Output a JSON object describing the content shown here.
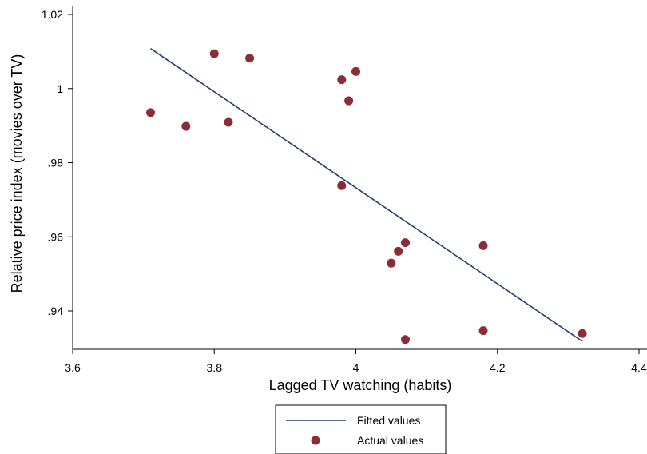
{
  "chart_data": {
    "type": "scatter",
    "xlabel": "Lagged TV watching (habits)",
    "ylabel": "Relative price index (movies over TV)",
    "xlim": [
      3.6,
      4.4
    ],
    "ylim": [
      0.929,
      1.023
    ],
    "x_ticks": [
      {
        "value": 3.6,
        "label": "3.6"
      },
      {
        "value": 3.8,
        "label": "3.8"
      },
      {
        "value": 4.0,
        "label": "4"
      },
      {
        "value": 4.2,
        "label": "4.2"
      },
      {
        "value": 4.4,
        "label": "4.4"
      }
    ],
    "y_ticks": [
      {
        "value": 0.94,
        "label": ".94"
      },
      {
        "value": 0.96,
        "label": ".96"
      },
      {
        "value": 0.98,
        "label": ".98"
      },
      {
        "value": 1.0,
        "label": "1"
      },
      {
        "value": 1.02,
        "label": "1.02"
      }
    ],
    "grid": false,
    "legend_position": "bottom",
    "series": [
      {
        "name": "Fitted values",
        "kind": "line",
        "color": "#1f3f6b",
        "points": [
          [
            3.71,
            1.0108
          ],
          [
            4.32,
            0.9318
          ]
        ]
      },
      {
        "name": "Actual values",
        "kind": "scatter",
        "color": "#8b2c36",
        "points": [
          [
            3.71,
            0.9935
          ],
          [
            3.76,
            0.9898
          ],
          [
            3.8,
            1.0094
          ],
          [
            3.82,
            0.9909
          ],
          [
            3.85,
            1.0082
          ],
          [
            3.98,
            1.0024
          ],
          [
            3.99,
            0.9967
          ],
          [
            4.0,
            1.0046
          ],
          [
            3.98,
            0.9738
          ],
          [
            4.05,
            0.9529
          ],
          [
            4.06,
            0.9561
          ],
          [
            4.07,
            0.9584
          ],
          [
            4.07,
            0.9323
          ],
          [
            4.18,
            0.9576
          ],
          [
            4.18,
            0.9347
          ],
          [
            4.32,
            0.9339
          ]
        ]
      }
    ]
  }
}
